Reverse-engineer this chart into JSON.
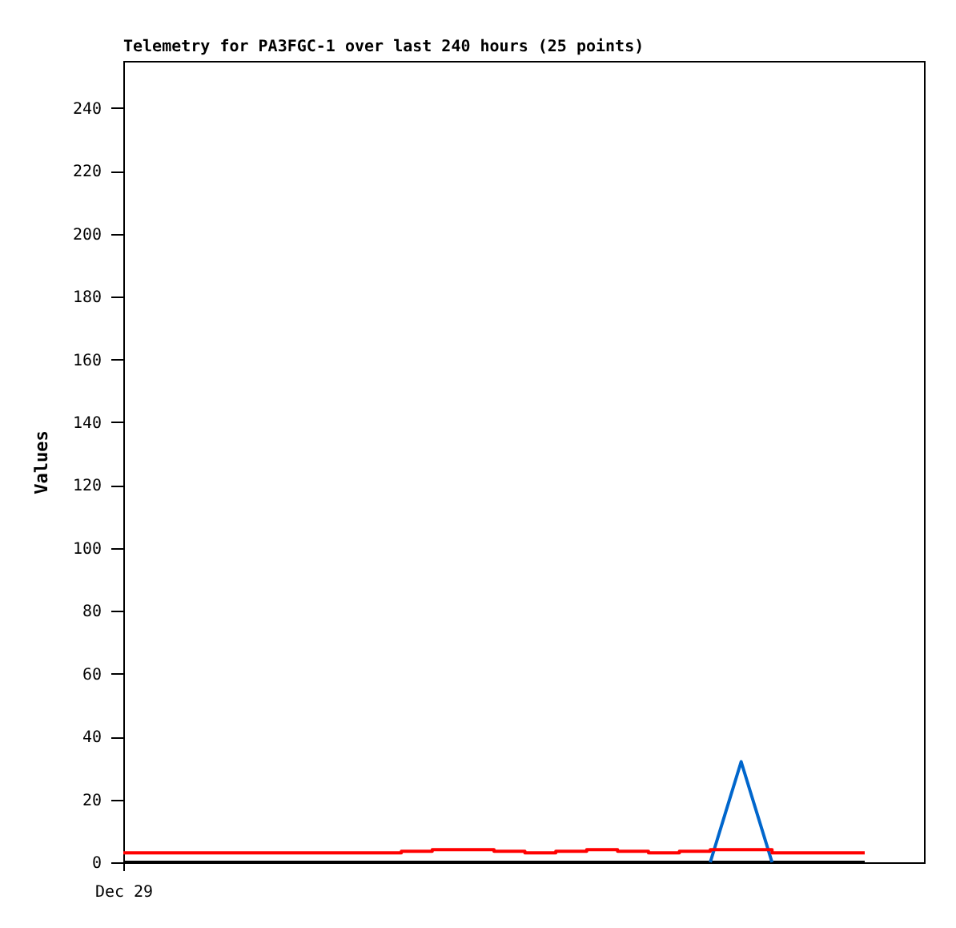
{
  "chart_data": {
    "type": "line",
    "title": "Telemetry for PA3FGC-1 over last 240 hours (25 points)",
    "ylabel": "Values",
    "categories": [
      "Dec 29",
      null,
      null,
      null,
      null,
      null,
      null,
      null,
      null,
      null,
      null,
      null,
      null,
      null,
      null,
      null,
      null,
      null,
      null,
      null,
      null,
      null,
      null,
      null,
      null
    ],
    "ylim": [
      0,
      255
    ],
    "yticks": [
      0,
      20,
      40,
      60,
      80,
      100,
      120,
      140,
      160,
      180,
      200,
      220,
      240
    ],
    "grid": false,
    "marker": "none",
    "line_style": "solid",
    "series": [
      {
        "type": "line",
        "color": "#000000",
        "values": [
          0,
          0,
          0,
          0,
          0,
          0,
          0,
          0,
          0,
          0,
          0,
          0,
          0,
          0,
          0,
          0,
          0,
          0,
          0,
          0,
          0,
          0,
          0,
          0,
          0
        ]
      },
      {
        "type": "line",
        "color": "#0066cc",
        "values": [
          null,
          null,
          null,
          null,
          null,
          null,
          null,
          null,
          null,
          null,
          null,
          null,
          null,
          null,
          null,
          null,
          null,
          null,
          null,
          0,
          32,
          0,
          null,
          null,
          null
        ]
      },
      {
        "type": "step",
        "color": "#ff0000",
        "values": [
          3,
          3,
          3,
          3,
          3,
          3,
          3,
          3,
          3,
          3.5,
          4,
          4,
          3.5,
          3,
          3.5,
          4,
          3.5,
          3,
          3.5,
          4,
          4,
          3,
          3,
          3,
          3
        ]
      }
    ]
  }
}
